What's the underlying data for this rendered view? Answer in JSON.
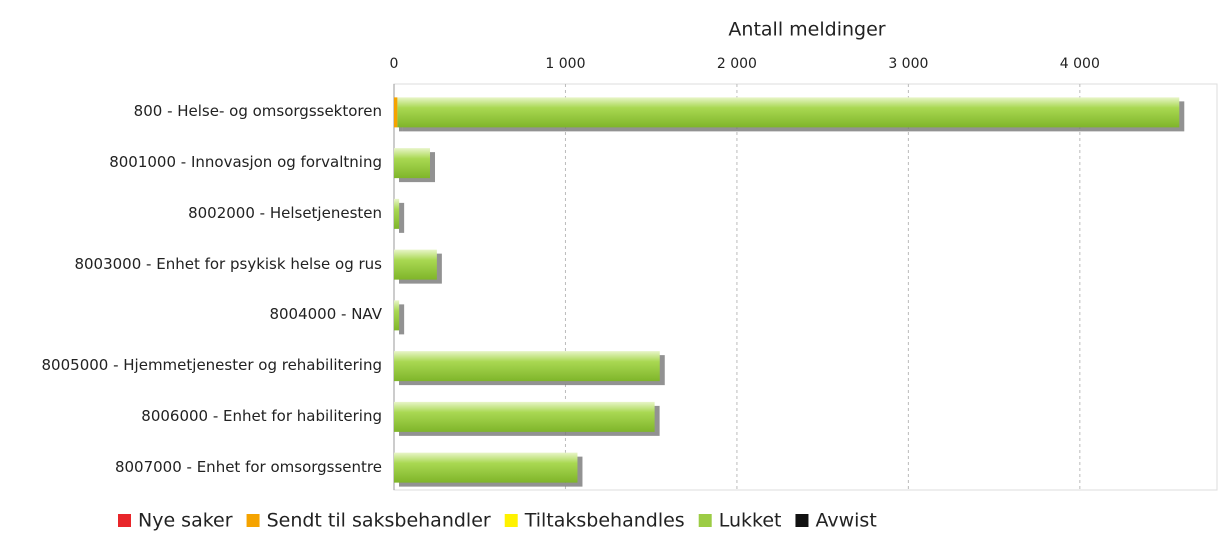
{
  "chart_data": {
    "type": "bar",
    "orientation": "horizontal",
    "stacked": true,
    "x_label": "Antall meldinger",
    "categories": [
      "800 - Helse- og omsorgssektoren",
      "8001000 - Innovasjon og forvaltning",
      "8002000 - Helsetjenesten",
      "8003000 - Enhet for psykisk helse og rus",
      "8004000 - NAV",
      "8005000 - Hjemmetjenester og rehabilitering",
      "8006000 - Enhet for habilitering",
      "8007000 - Enhet for omsorgssentre"
    ],
    "series": [
      {
        "name": "Nye saker",
        "color": "#e8262a",
        "values": [
          0,
          0,
          0,
          0,
          0,
          0,
          0,
          0
        ]
      },
      {
        "name": "Sendt til saksbehandler",
        "color": "#f5a300",
        "values": [
          20,
          0,
          0,
          0,
          0,
          0,
          0,
          0
        ]
      },
      {
        "name": "Tiltaksbehandles",
        "color": "#fff200",
        "values": [
          0,
          0,
          0,
          0,
          0,
          0,
          0,
          0
        ]
      },
      {
        "name": "Lukket",
        "color": "#9ccc45",
        "values": [
          4560,
          210,
          30,
          250,
          30,
          1550,
          1520,
          1070
        ]
      },
      {
        "name": "Avwist",
        "color": "#111111",
        "values": [
          0,
          0,
          0,
          0,
          0,
          0,
          0,
          0
        ]
      }
    ],
    "xlim": [
      0,
      4800
    ],
    "xticks": [
      0,
      {
        "value": 1000,
        "label": "1 000"
      },
      {
        "value": 2000,
        "label": "2 000"
      },
      {
        "value": 3000,
        "label": "3 000"
      },
      {
        "value": 4000,
        "label": "4 000"
      }
    ],
    "grid": true,
    "legend": "bottom"
  }
}
